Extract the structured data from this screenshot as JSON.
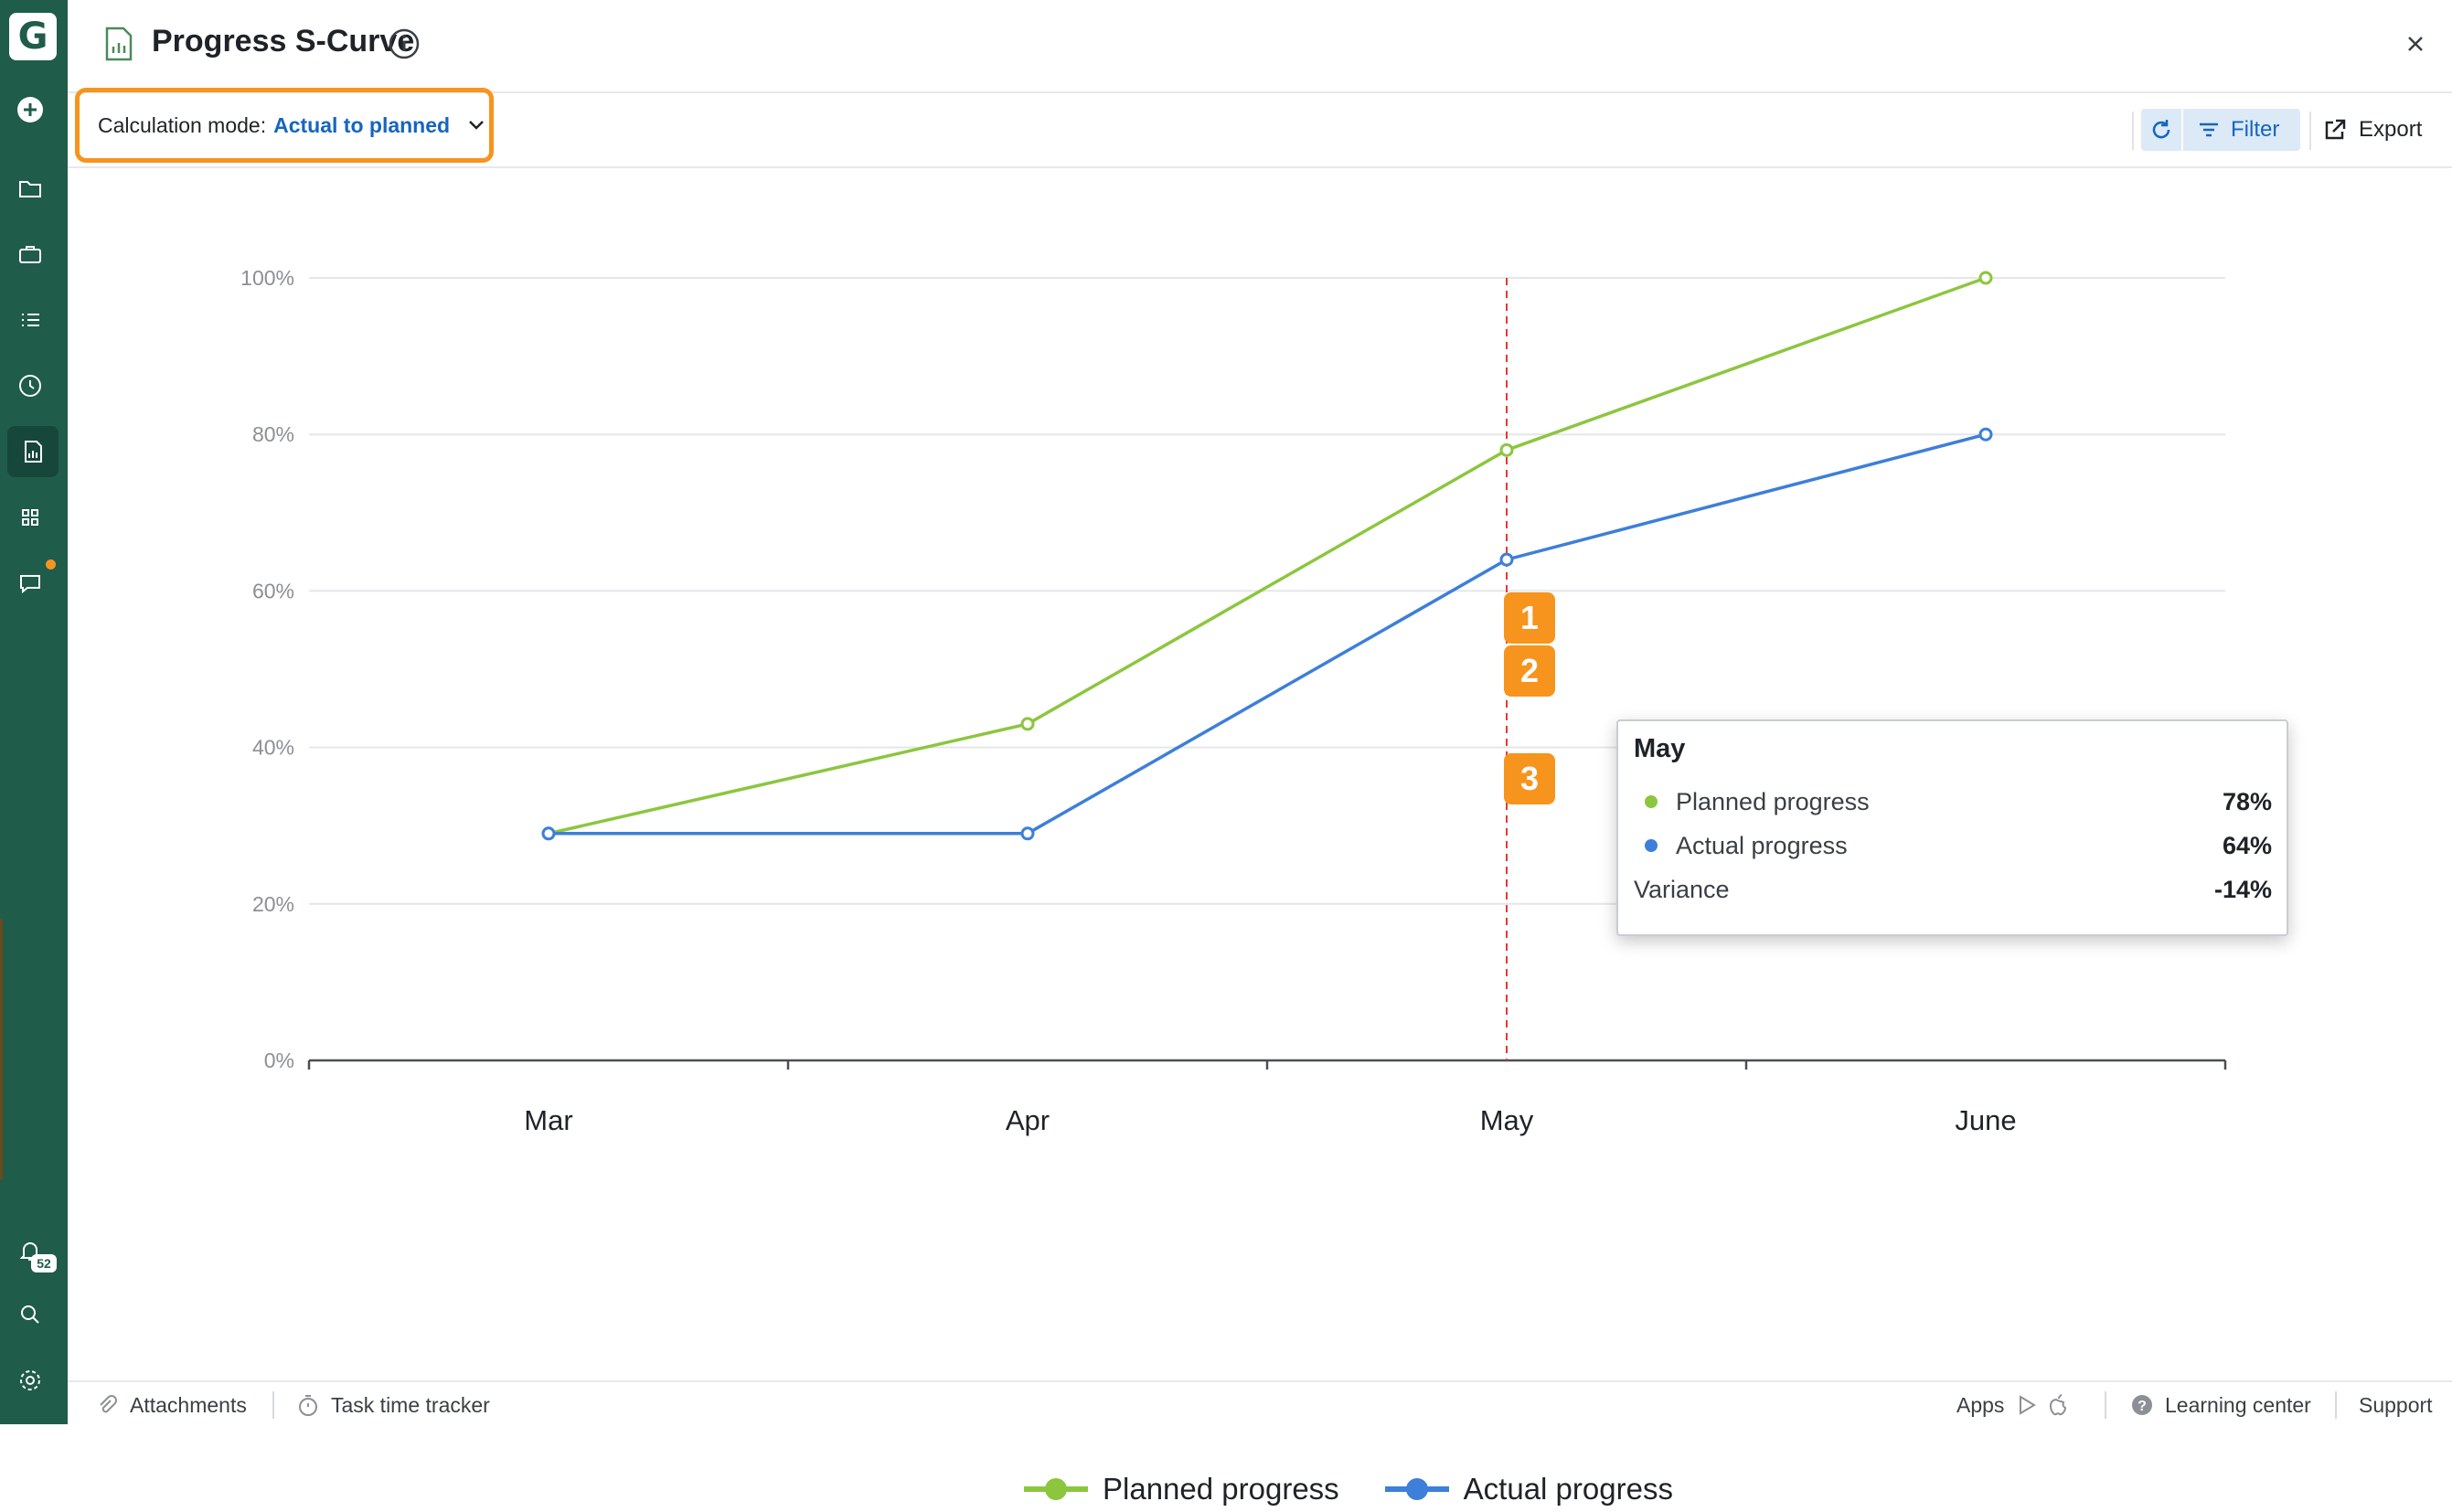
{
  "app": {
    "logo_letter": "G"
  },
  "header": {
    "title": "Progress S-Curve"
  },
  "toolbar": {
    "calc_mode_label": "Calculation mode:",
    "calc_mode_value": "Actual to planned",
    "filter_label": "Filter",
    "export_label": "Export"
  },
  "sidebar": {
    "notification_count": "52"
  },
  "tooltip": {
    "month": "May",
    "planned_label": "Planned progress",
    "planned_value": "78%",
    "actual_label": "Actual progress",
    "actual_value": "64%",
    "variance_label": "Variance",
    "variance_value": "-14%"
  },
  "callouts": [
    "1",
    "2",
    "3"
  ],
  "colors": {
    "planned": "#8cc63f",
    "actual": "#3d7fd9",
    "marker": "#e53935",
    "accent": "#f7941d",
    "sidebar": "#1f5c4a"
  },
  "chart_data": {
    "type": "line",
    "categories": [
      "Mar",
      "Apr",
      "May",
      "June"
    ],
    "series": [
      {
        "name": "Planned progress",
        "values": [
          29,
          43,
          78,
          100
        ]
      },
      {
        "name": "Actual progress",
        "values": [
          29,
          29,
          64,
          80
        ]
      }
    ],
    "y_tick_labels": [
      "0%",
      "20%",
      "40%",
      "60%",
      "80%",
      "100%"
    ],
    "ylim": [
      0,
      100
    ],
    "highlight_category": "May",
    "legend_position": "bottom"
  },
  "footer": {
    "attachments": "Attachments",
    "task_time_tracker": "Task time tracker",
    "apps": "Apps",
    "learning_center": "Learning center",
    "support": "Support"
  }
}
